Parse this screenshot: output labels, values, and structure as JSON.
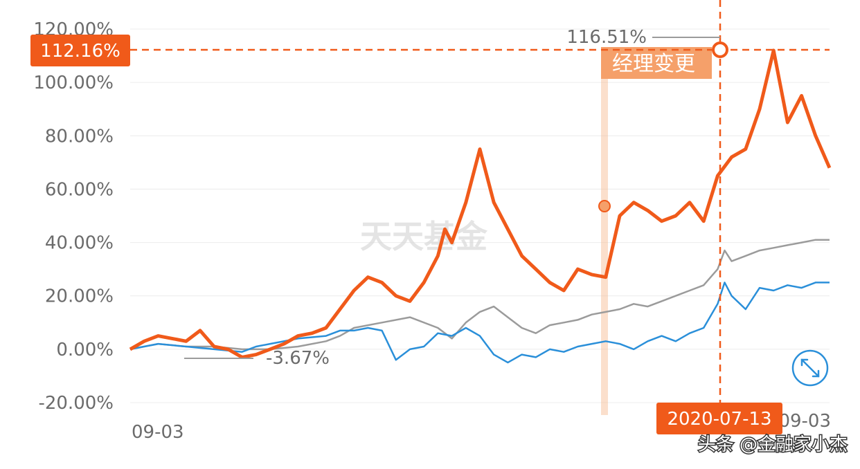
{
  "chart_data": {
    "type": "line",
    "y_ticks": [
      "120.00%",
      "100.00%",
      "80.00%",
      "60.00%",
      "40.00%",
      "20.00%",
      "0.00%",
      "-20.00%"
    ],
    "ylim": [
      -20,
      120
    ],
    "x_labels": {
      "start": "09-03",
      "end": "09-03"
    },
    "grid": true,
    "series": [
      {
        "color": "#f05a1a",
        "x": [
          0,
          2,
          4,
          6,
          8,
          10,
          12,
          14,
          16,
          18,
          20,
          22,
          24,
          26,
          28,
          30,
          32,
          34,
          36,
          38,
          40,
          42,
          44,
          45,
          46,
          48,
          50,
          52,
          54,
          56,
          58,
          60,
          62,
          64,
          66,
          68,
          70,
          72,
          74,
          76,
          78,
          80,
          82,
          84,
          86,
          88,
          90,
          92,
          94,
          96,
          98,
          100
        ],
        "values": [
          0,
          3,
          5,
          4,
          3,
          7,
          1,
          0,
          -3,
          -2,
          0,
          2,
          5,
          6,
          8,
          15,
          22,
          27,
          25,
          20,
          18,
          25,
          35,
          45,
          40,
          55,
          75,
          55,
          45,
          35,
          30,
          25,
          22,
          30,
          28,
          27,
          50,
          55,
          52,
          48,
          50,
          55,
          48,
          65,
          72,
          75,
          90,
          112,
          85,
          95,
          80,
          68
        ]
      },
      {
        "color": "#9b9b9b",
        "x": [
          0,
          4,
          8,
          12,
          16,
          20,
          24,
          28,
          30,
          32,
          36,
          40,
          44,
          46,
          48,
          50,
          52,
          54,
          56,
          58,
          60,
          62,
          64,
          66,
          68,
          70,
          72,
          74,
          76,
          78,
          80,
          82,
          84,
          85,
          86,
          88,
          90,
          92,
          94,
          96,
          98,
          100
        ],
        "values": [
          0,
          2,
          1,
          1,
          0,
          0,
          1,
          3,
          5,
          8,
          10,
          12,
          8,
          4,
          10,
          14,
          16,
          12,
          8,
          6,
          9,
          10,
          11,
          13,
          14,
          15,
          17,
          16,
          18,
          20,
          22,
          24,
          30,
          37,
          33,
          35,
          37,
          38,
          39,
          40,
          41,
          41
        ]
      },
      {
        "color": "#2a8fd9",
        "x": [
          0,
          4,
          8,
          12,
          16,
          18,
          20,
          24,
          28,
          30,
          32,
          34,
          36,
          38,
          40,
          42,
          44,
          46,
          48,
          50,
          52,
          54,
          56,
          58,
          60,
          62,
          64,
          66,
          68,
          70,
          72,
          74,
          76,
          78,
          80,
          82,
          84,
          85,
          86,
          88,
          90,
          92,
          94,
          96,
          98,
          100
        ],
        "values": [
          0,
          2,
          1,
          0,
          -1,
          1,
          2,
          4,
          5,
          7,
          7,
          8,
          7,
          -4,
          0,
          1,
          6,
          5,
          8,
          5,
          -2,
          -5,
          -2,
          -3,
          0,
          -1,
          1,
          2,
          3,
          2,
          0,
          3,
          5,
          3,
          6,
          8,
          17,
          25,
          20,
          15,
          23,
          22,
          24,
          23,
          25,
          25
        ]
      }
    ],
    "annotations": {
      "max_label": "116.51%",
      "min_label": "-3.67%",
      "event_label": "经理变更",
      "crosshair_value": "112.16%",
      "crosshair_date": "2020-07-13"
    },
    "watermark": "天天基金"
  },
  "credit": "头条 @金融家小杰"
}
